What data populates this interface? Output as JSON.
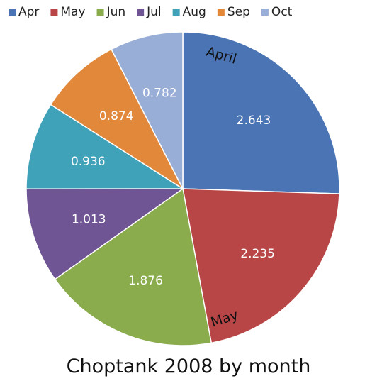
{
  "chart_data": {
    "type": "pie",
    "title": "Choptank 2008 by month",
    "categories": [
      "Apr",
      "May",
      "Jun",
      "Jul",
      "Aug",
      "Sep",
      "Oct"
    ],
    "values": [
      2.643,
      2.235,
      1.876,
      1.013,
      0.936,
      0.874,
      0.782
    ],
    "value_labels": [
      "2.643",
      "2.235",
      "1.876",
      "1.013",
      "0.936",
      "0.874",
      "0.782"
    ],
    "colors": [
      "#4a74b4",
      "#b94646",
      "#8bac4d",
      "#6f5594",
      "#3fa2b8",
      "#e2883b",
      "#98aed6"
    ],
    "callouts": [
      {
        "category": "Apr",
        "text": "April"
      },
      {
        "category": "May",
        "text": "May"
      }
    ],
    "legend_position": "top",
    "start_angle": "12 o'clock",
    "direction": "clockwise"
  }
}
